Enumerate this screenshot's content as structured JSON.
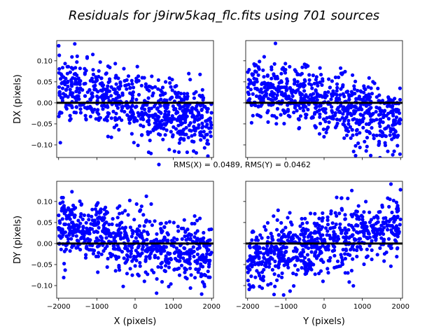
{
  "figure": {
    "title": "Residuals for j9irw5kaq_flc.fits using 701 sources",
    "legend_text": "RMS(X) = 0.0489, RMS(Y) = 0.0462"
  },
  "colors": {
    "points": "#0000ff",
    "zero_line": "#000000",
    "axes": "#000000",
    "background": "#ffffff"
  },
  "chart_data": [
    {
      "id": "dx_vs_x",
      "type": "scatter",
      "title": "",
      "xlabel": "",
      "ylabel": "DX (pixels)",
      "xlim": [
        -2050,
        2050
      ],
      "ylim": [
        -0.13,
        0.148
      ],
      "yticks": [
        0.1,
        0.05,
        0.0,
        -0.05,
        -0.1
      ],
      "ytick_labels": [
        "0.10",
        "0.05",
        "0.00",
        "−0.05",
        "−0.10"
      ],
      "xticks": [
        -2000,
        -1000,
        0,
        1000,
        2000
      ],
      "xtick_labels": [],
      "zero_line": 0,
      "trend": "negative slope, ~0.035 to ~-0.045 px across X"
    },
    {
      "id": "dx_vs_y",
      "type": "scatter",
      "title": "",
      "xlabel": "",
      "ylabel": "",
      "xlim": [
        -2050,
        2050
      ],
      "ylim": [
        -0.13,
        0.148
      ],
      "yticks": [
        0.1,
        0.05,
        0.0,
        -0.05,
        -0.1
      ],
      "ytick_labels": [],
      "xticks": [
        -2000,
        -1000,
        0,
        1000,
        2000
      ],
      "xtick_labels": [],
      "zero_line": 0,
      "trend": "negative slope, ~0.04 to ~-0.045 px across Y"
    },
    {
      "id": "dy_vs_x",
      "type": "scatter",
      "title": "",
      "xlabel": "X (pixels)",
      "ylabel": "DY (pixels)",
      "xlim": [
        -2050,
        2050
      ],
      "ylim": [
        -0.13,
        0.148
      ],
      "yticks": [
        0.1,
        0.05,
        0.0,
        -0.05,
        -0.1
      ],
      "ytick_labels": [
        "0.10",
        "0.05",
        "0.00",
        "−0.05",
        "−0.10"
      ],
      "xticks": [
        -2000,
        -1000,
        0,
        1000,
        2000
      ],
      "xtick_labels": [
        "−2000",
        "−1000",
        "0",
        "1000",
        "2000"
      ],
      "zero_line": 0,
      "trend": "negative slope, ~0.045 to ~-0.04 px across X"
    },
    {
      "id": "dy_vs_y",
      "type": "scatter",
      "title": "",
      "xlabel": "Y (pixels)",
      "ylabel": "",
      "xlim": [
        -2050,
        2050
      ],
      "ylim": [
        -0.13,
        0.148
      ],
      "yticks": [
        0.1,
        0.05,
        0.0,
        -0.05,
        -0.1
      ],
      "ytick_labels": [],
      "xticks": [
        -2000,
        -1000,
        0,
        1000,
        2000
      ],
      "xtick_labels": [
        "−2000",
        "−1000",
        "0",
        "1000",
        "2000"
      ],
      "zero_line": 0,
      "trend": "positive slope, ~-0.04 to ~0.05 px across Y"
    }
  ]
}
